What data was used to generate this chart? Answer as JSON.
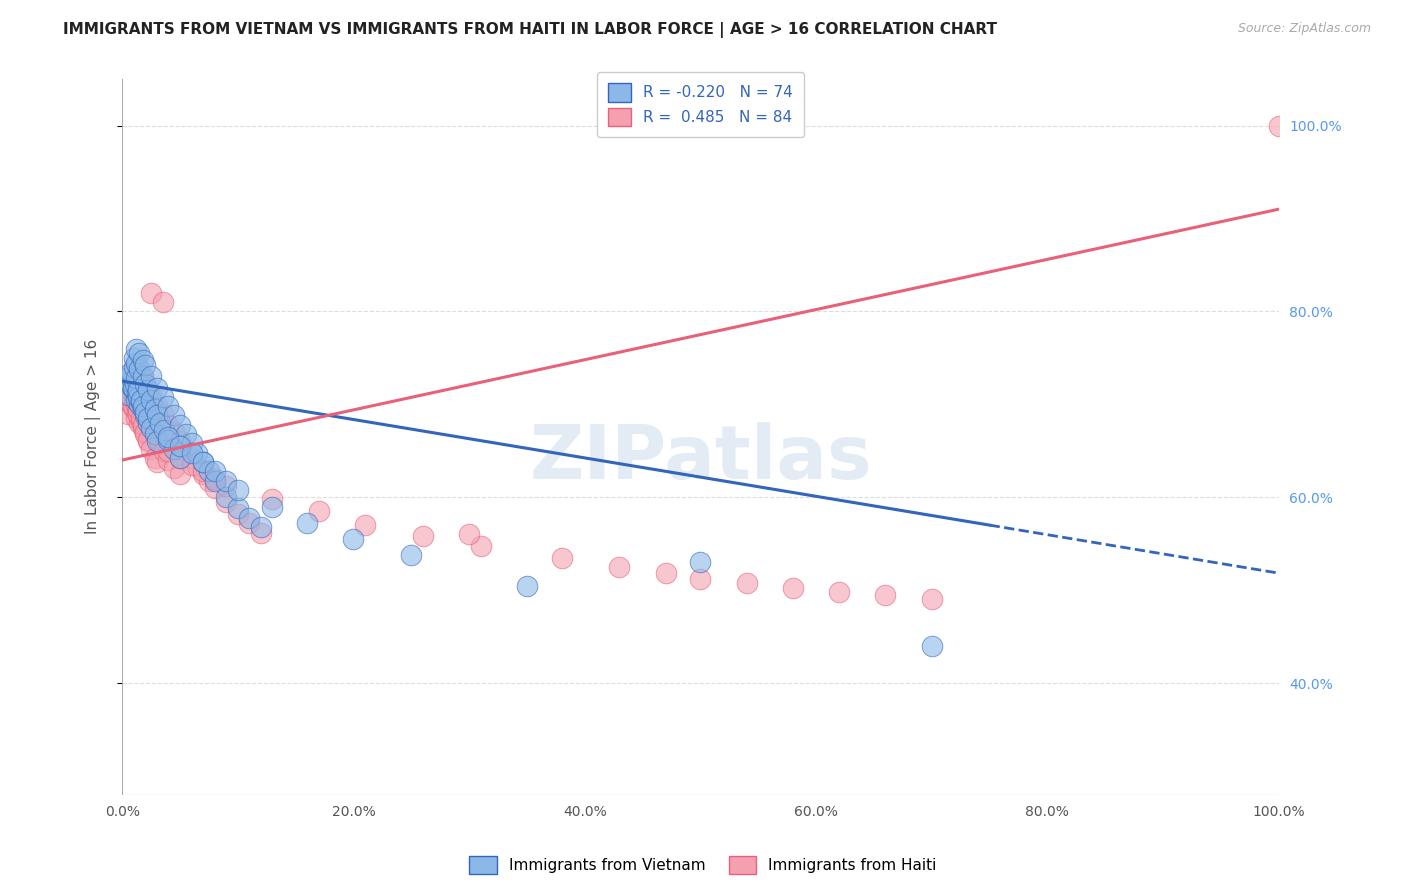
{
  "title": "IMMIGRANTS FROM VIETNAM VS IMMIGRANTS FROM HAITI IN LABOR FORCE | AGE > 16 CORRELATION CHART",
  "source": "Source: ZipAtlas.com",
  "ylabel": "In Labor Force | Age > 16",
  "watermark": "ZIPatlas",
  "color_vietnam": "#8BB8E8",
  "color_haiti": "#F4A0B0",
  "color_trendline_vietnam": "#3366BB",
  "color_trendline_haiti": "#E8607A",
  "background_color": "#FFFFFF",
  "vietnam_scatter_x": [
    0.005,
    0.008,
    0.01,
    0.012,
    0.015,
    0.006,
    0.007,
    0.009,
    0.011,
    0.013,
    0.014,
    0.016,
    0.018,
    0.02,
    0.022,
    0.008,
    0.01,
    0.012,
    0.014,
    0.016,
    0.018,
    0.02,
    0.022,
    0.025,
    0.028,
    0.03,
    0.01,
    0.012,
    0.015,
    0.018,
    0.02,
    0.022,
    0.025,
    0.028,
    0.03,
    0.033,
    0.036,
    0.04,
    0.045,
    0.05,
    0.012,
    0.015,
    0.018,
    0.02,
    0.025,
    0.03,
    0.035,
    0.04,
    0.045,
    0.05,
    0.055,
    0.06,
    0.065,
    0.07,
    0.075,
    0.08,
    0.09,
    0.1,
    0.11,
    0.12,
    0.04,
    0.05,
    0.06,
    0.07,
    0.08,
    0.09,
    0.1,
    0.13,
    0.16,
    0.2,
    0.25,
    0.35,
    0.5,
    0.7
  ],
  "vietnam_scatter_y": [
    0.71,
    0.72,
    0.715,
    0.705,
    0.7,
    0.725,
    0.73,
    0.718,
    0.722,
    0.712,
    0.708,
    0.703,
    0.695,
    0.688,
    0.68,
    0.735,
    0.74,
    0.728,
    0.715,
    0.705,
    0.698,
    0.692,
    0.685,
    0.675,
    0.668,
    0.66,
    0.75,
    0.745,
    0.738,
    0.73,
    0.722,
    0.715,
    0.705,
    0.695,
    0.688,
    0.68,
    0.672,
    0.662,
    0.652,
    0.642,
    0.76,
    0.755,
    0.748,
    0.742,
    0.73,
    0.718,
    0.708,
    0.698,
    0.688,
    0.678,
    0.668,
    0.658,
    0.648,
    0.638,
    0.628,
    0.618,
    0.6,
    0.588,
    0.578,
    0.568,
    0.665,
    0.655,
    0.648,
    0.638,
    0.628,
    0.618,
    0.608,
    0.59,
    0.572,
    0.555,
    0.538,
    0.505,
    0.53,
    0.44
  ],
  "haiti_scatter_x": [
    0.005,
    0.008,
    0.01,
    0.012,
    0.015,
    0.006,
    0.007,
    0.009,
    0.011,
    0.013,
    0.014,
    0.016,
    0.018,
    0.02,
    0.022,
    0.008,
    0.01,
    0.012,
    0.014,
    0.016,
    0.018,
    0.02,
    0.022,
    0.025,
    0.028,
    0.03,
    0.01,
    0.012,
    0.015,
    0.018,
    0.02,
    0.022,
    0.025,
    0.028,
    0.03,
    0.033,
    0.036,
    0.04,
    0.045,
    0.05,
    0.012,
    0.015,
    0.018,
    0.02,
    0.025,
    0.03,
    0.035,
    0.04,
    0.045,
    0.05,
    0.055,
    0.06,
    0.065,
    0.07,
    0.075,
    0.08,
    0.09,
    0.1,
    0.11,
    0.12,
    0.04,
    0.05,
    0.06,
    0.07,
    0.08,
    0.09,
    0.13,
    0.17,
    0.21,
    0.26,
    0.31,
    0.38,
    0.43,
    0.47,
    0.5,
    0.54,
    0.58,
    0.62,
    0.66,
    0.7,
    0.025,
    0.035,
    0.3,
    1.0
  ],
  "haiti_scatter_y": [
    0.69,
    0.7,
    0.695,
    0.685,
    0.68,
    0.705,
    0.71,
    0.698,
    0.702,
    0.692,
    0.688,
    0.682,
    0.675,
    0.668,
    0.66,
    0.715,
    0.72,
    0.708,
    0.695,
    0.685,
    0.678,
    0.67,
    0.662,
    0.652,
    0.642,
    0.638,
    0.73,
    0.725,
    0.718,
    0.71,
    0.7,
    0.692,
    0.682,
    0.672,
    0.665,
    0.658,
    0.65,
    0.64,
    0.632,
    0.625,
    0.74,
    0.735,
    0.728,
    0.722,
    0.71,
    0.698,
    0.688,
    0.678,
    0.67,
    0.66,
    0.65,
    0.642,
    0.634,
    0.625,
    0.618,
    0.61,
    0.595,
    0.582,
    0.572,
    0.562,
    0.65,
    0.642,
    0.635,
    0.628,
    0.62,
    0.612,
    0.598,
    0.585,
    0.57,
    0.558,
    0.548,
    0.535,
    0.525,
    0.518,
    0.512,
    0.508,
    0.502,
    0.498,
    0.495,
    0.49,
    0.82,
    0.81,
    0.56,
    1.0
  ],
  "xlim": [
    0.0,
    1.0
  ],
  "ylim": [
    0.28,
    1.05
  ],
  "xticks": [
    0.0,
    0.2,
    0.4,
    0.6,
    0.8,
    1.0
  ],
  "xticklabels": [
    "0.0%",
    "20.0%",
    "40.0%",
    "60.0%",
    "80.0%",
    "100.0%"
  ],
  "yticks_right_vals": [
    0.4,
    0.6,
    0.8,
    1.0
  ],
  "yticks_right_labels": [
    "40.0%",
    "60.0%",
    "80.0%",
    "100.0%"
  ],
  "yticks_grid_vals": [
    0.4,
    0.6,
    0.8,
    1.0
  ],
  "grid_color": "#DDDDDD",
  "trendline_vietnam_x0": 0.0,
  "trendline_vietnam_y0": 0.725,
  "trendline_vietnam_x1": 0.75,
  "trendline_vietnam_y1": 0.57,
  "trendline_haiti_x0": 0.0,
  "trendline_haiti_y0": 0.64,
  "trendline_haiti_x1": 1.0,
  "trendline_haiti_y1": 0.91
}
